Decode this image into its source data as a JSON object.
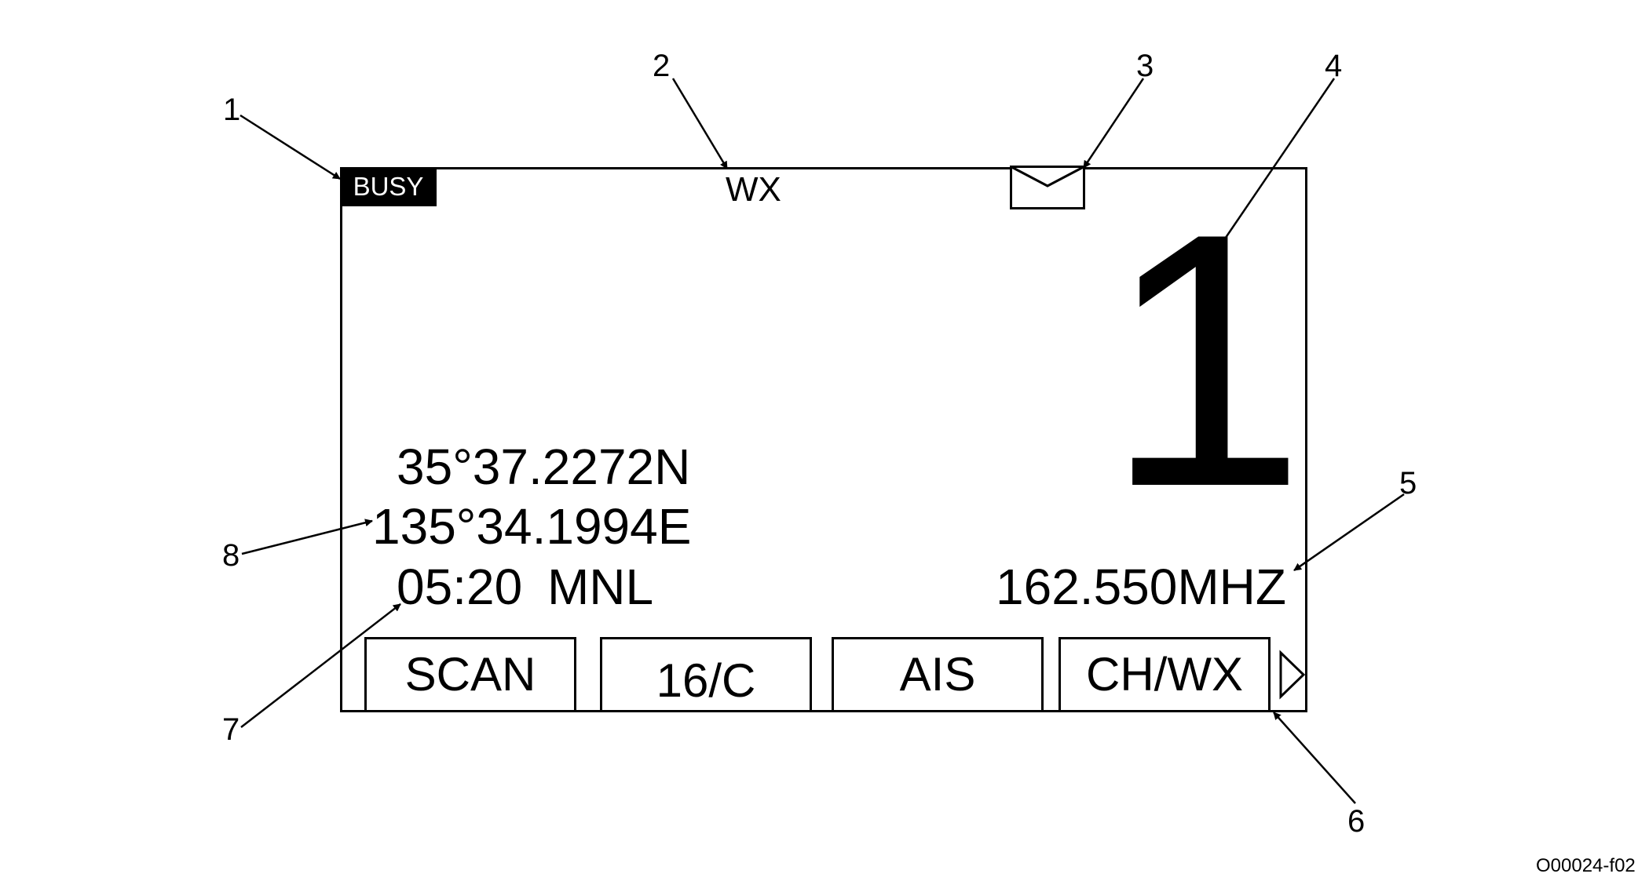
{
  "display": {
    "busy_badge": "BUSY",
    "mode_label": "WX",
    "message_icon": "envelope-icon",
    "channel_number": "1",
    "latitude": "35°37.2272N",
    "longitude": "135°34.1994E",
    "time_mode": "05:20 MNL",
    "frequency": "162.550MHZ",
    "next_icon": "triangle-right-icon"
  },
  "softkeys": [
    {
      "label": "SCAN"
    },
    {
      "label": "16/C"
    },
    {
      "label": "AIS"
    },
    {
      "label": "CH/WX"
    }
  ],
  "callouts": [
    "1",
    "2",
    "3",
    "4",
    "5",
    "6",
    "7",
    "8"
  ],
  "figure_code": "O00024-f02",
  "colors": {
    "ink": "#000000",
    "paper": "#ffffff"
  }
}
